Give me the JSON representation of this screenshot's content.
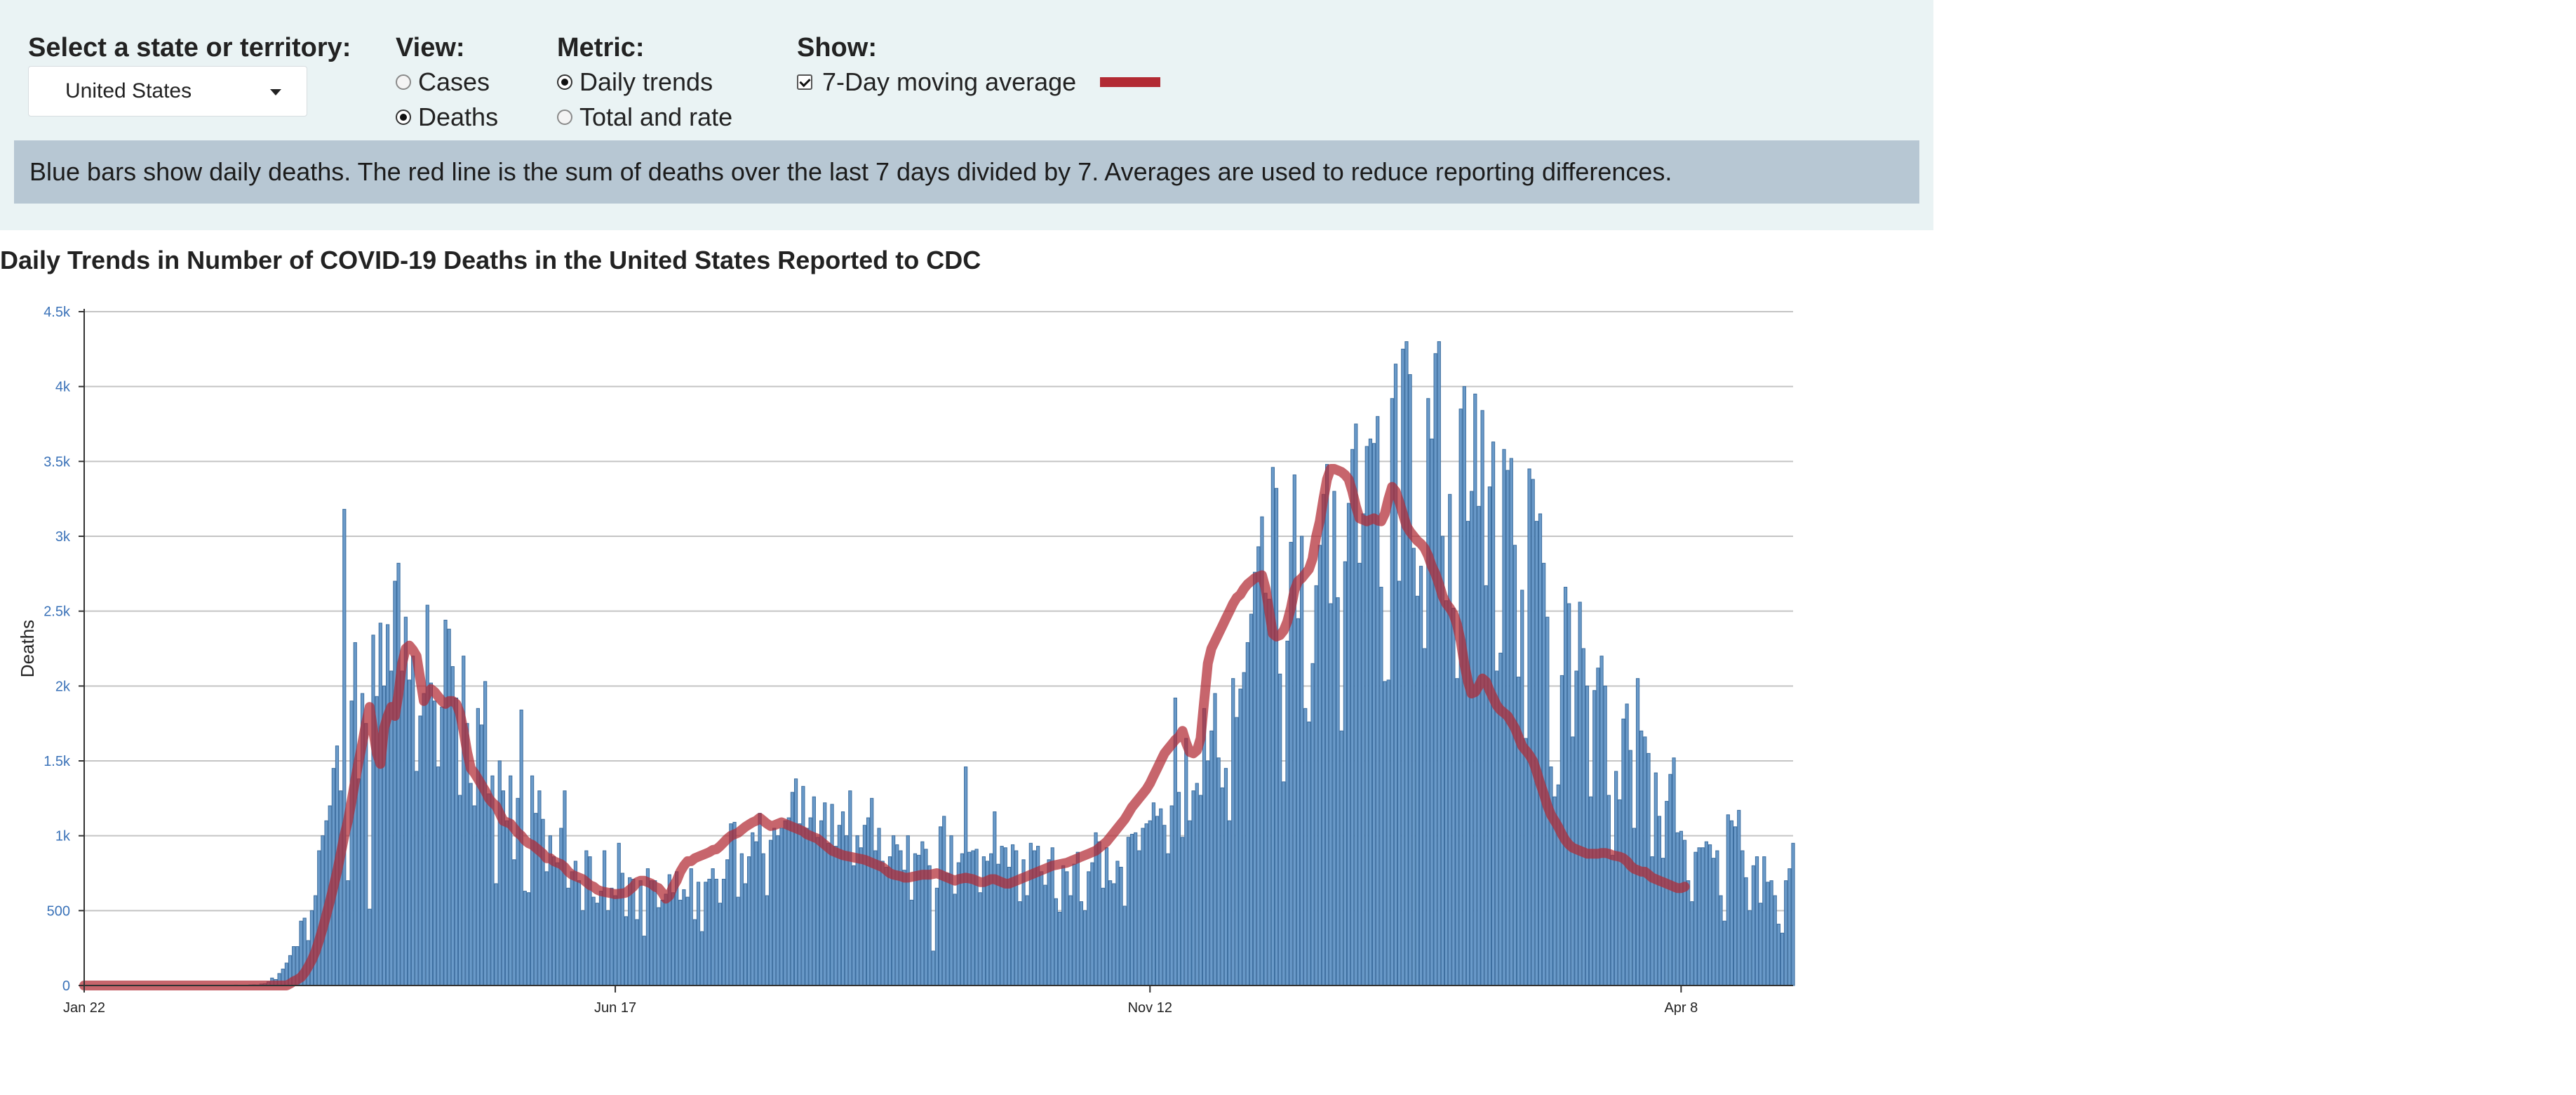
{
  "controls": {
    "state_label": "Select a state or territory:",
    "state_value": "United States",
    "view_label": "View:",
    "view_options": [
      "Cases",
      "Deaths"
    ],
    "metric_label": "Metric:",
    "metric_options": [
      "Daily trends",
      "Total and rate"
    ],
    "show_label": "Show:",
    "show_option": "7-Day moving average"
  },
  "banner": "Blue bars show daily deaths. The red line is the sum of deaths over the last 7 days divided by 7. Averages are used to reduce reporting differences.",
  "chart_title": "Daily Trends in Number of COVID-19 Deaths in the United States Reported to CDC",
  "colors": {
    "bar": "#6a9ac9",
    "bar_edge": "#3d6e9f",
    "line": "#b22a33",
    "grid": "#c4c4c4"
  },
  "chart_data": {
    "type": "bar",
    "title": "Daily Trends in Number of COVID-19 Deaths in the United States Reported to CDC",
    "xlabel": "",
    "ylabel": "Deaths",
    "ylim": [
      0,
      4500
    ],
    "yticks": [
      0,
      500,
      1000,
      1500,
      2000,
      2500,
      3000,
      3500,
      4000,
      4500
    ],
    "ytick_labels": [
      "0",
      "500",
      "1k",
      "1.5k",
      "2k",
      "2.5k",
      "3k",
      "3.5k",
      "4k",
      "4.5k"
    ],
    "xticks": [
      {
        "index": 0,
        "label": "Jan 22"
      },
      {
        "index": 147,
        "label": "Jun 17"
      },
      {
        "index": 295,
        "label": "Nov 12"
      },
      {
        "index": 442,
        "label": "Apr 8"
      }
    ],
    "x_start": "Jan 22",
    "x_end": "Apr 8",
    "series": [
      {
        "type": "bar",
        "values": [
          0,
          0,
          0,
          0,
          0,
          0,
          0,
          0,
          0,
          0,
          0,
          0,
          0,
          0,
          0,
          0,
          0,
          0,
          0,
          0,
          0,
          0,
          0,
          0,
          0,
          0,
          0,
          0,
          0,
          0,
          0,
          0,
          0,
          0,
          0,
          0,
          0,
          0,
          1,
          0,
          0,
          2,
          3,
          1,
          2,
          1,
          4,
          5,
          4,
          10,
          12,
          25,
          50,
          40,
          80,
          110,
          150,
          200,
          260,
          260,
          430,
          450,
          300,
          500,
          600,
          900,
          1000,
          1100,
          1200,
          1450,
          1600,
          1300,
          3180,
          700,
          1900,
          2290,
          1380,
          1950,
          1750,
          510,
          2340,
          1930,
          2420,
          2000,
          2410,
          2100,
          2700,
          2820,
          2100,
          2460,
          2040,
          2200,
          1430,
          1800,
          1950,
          2540,
          2020,
          1900,
          1460,
          1860,
          2440,
          2380,
          2130,
          1920,
          1270,
          2200,
          1750,
          1350,
          1200,
          1850,
          1740,
          2030,
          1280,
          1400,
          680,
          1500,
          1300,
          1100,
          1400,
          840,
          1250,
          1840,
          630,
          620,
          1400,
          1150,
          1300,
          1110,
          760,
          1000,
          860,
          820,
          1050,
          1300,
          650,
          760,
          830,
          700,
          500,
          900,
          860,
          590,
          550,
          630,
          900,
          500,
          650,
          600,
          950,
          750,
          460,
          720,
          710,
          440,
          700,
          330,
          780,
          700,
          700,
          520,
          570,
          610,
          740,
          620,
          760,
          570,
          640,
          590,
          780,
          440,
          690,
          360,
          690,
          710,
          780,
          710,
          550,
          710,
          840,
          1080,
          1090,
          590,
          880,
          680,
          860,
          1020,
          960,
          1150,
          880,
          600,
          970,
          1050,
          1000,
          1050,
          1100,
          1120,
          1290,
          1380,
          1080,
          1330,
          1050,
          1120,
          1260,
          990,
          1100,
          1220,
          950,
          1210,
          930,
          1070,
          1160,
          1000,
          1300,
          800,
          1000,
          920,
          1070,
          1120,
          1250,
          900,
          1050,
          830,
          790,
          860,
          1000,
          940,
          900,
          770,
          1000,
          570,
          880,
          870,
          960,
          910,
          800,
          230,
          650,
          1060,
          1130,
          750,
          1000,
          610,
          820,
          880,
          1460,
          890,
          900,
          910,
          620,
          860,
          830,
          880,
          1160,
          810,
          930,
          920,
          790,
          940,
          900,
          560,
          840,
          600,
          950,
          900,
          930,
          760,
          670,
          840,
          920,
          580,
          490,
          800,
          760,
          600,
          810,
          890,
          560,
          500,
          760,
          820,
          1020,
          960,
          650,
          920,
          700,
          680,
          830,
          790,
          530,
          990,
          1010,
          1020,
          900,
          1050,
          1080,
          1100,
          1220,
          1130,
          1180,
          1070,
          880,
          1200,
          1920,
          1290,
          990,
          1650,
          1100,
          1300,
          1350,
          1270,
          1850,
          1500,
          1700,
          1950,
          1520,
          1320,
          1450,
          1100,
          2050,
          1790,
          1980,
          2090,
          2290,
          2480,
          2760,
          2930,
          3130,
          2620,
          2580,
          3460,
          3320,
          2080,
          1360,
          2300,
          2960,
          3410,
          2450,
          3000,
          1850,
          1760,
          2150,
          2670,
          2940,
          3280,
          3480,
          2550,
          3300,
          2590,
          1700,
          2830,
          3220,
          3580,
          3750,
          2820,
          3150,
          3600,
          3650,
          3620,
          3800,
          2660,
          2030,
          2040,
          3920,
          4150,
          2700,
          4250,
          4300,
          4080,
          2920,
          2600,
          2800,
          2250,
          3920,
          3650,
          4220,
          4300,
          3000,
          2570,
          3280,
          2520,
          2050,
          3850,
          4000,
          3100,
          3300,
          3950,
          3200,
          3840,
          2670,
          3330,
          3630,
          2100,
          2220,
          3580,
          3440,
          3520,
          2940,
          2060,
          2640,
          1650,
          3450,
          3380,
          3100,
          3150,
          2820,
          2460,
          1460,
          1260,
          1340,
          2070,
          2660,
          2550,
          1660,
          2100,
          2560,
          2250,
          2000,
          1260,
          1970,
          2120,
          2200,
          2000,
          1270,
          870,
          1430,
          1240,
          1780,
          1880,
          1570,
          1050,
          2050,
          1700,
          1660,
          1550,
          860,
          1420,
          1130,
          850,
          1230,
          1410,
          1520,
          1020,
          1030,
          970,
          700,
          560,
          890,
          920,
          920,
          960,
          940,
          850,
          900,
          600,
          430,
          1140,
          1100,
          1060,
          1170,
          900,
          720,
          500,
          800,
          860,
          550,
          860,
          690,
          700,
          600,
          410,
          350,
          700,
          780,
          950
        ]
      },
      {
        "type": "line",
        "values": [
          0,
          0,
          0,
          0,
          0,
          0,
          0,
          0,
          0,
          0,
          0,
          0,
          0,
          0,
          0,
          0,
          0,
          0,
          0,
          0,
          0,
          0,
          0,
          0,
          0,
          0,
          0,
          0,
          0,
          0,
          0,
          0,
          0,
          0,
          0,
          0,
          0,
          0,
          0,
          0,
          0,
          0,
          0,
          0,
          0,
          0,
          0,
          0,
          0,
          0,
          0,
          0,
          0,
          0,
          0,
          0,
          0,
          12,
          28,
          40,
          55,
          85,
          125,
          170,
          225,
          300,
          380,
          470,
          560,
          660,
          760,
          880,
          1000,
          1100,
          1230,
          1370,
          1500,
          1620,
          1750,
          1860,
          1700,
          1550,
          1480,
          1720,
          1800,
          1860,
          1800,
          1950,
          2150,
          2250,
          2270,
          2240,
          2200,
          2050,
          1900,
          1950,
          1980,
          1960,
          1930,
          1900,
          1880,
          1900,
          1900,
          1880,
          1820,
          1700,
          1560,
          1450,
          1420,
          1380,
          1340,
          1300,
          1250,
          1220,
          1200,
          1150,
          1100,
          1090,
          1080,
          1050,
          1020,
          1000,
          970,
          950,
          940,
          920,
          900,
          880,
          850,
          850,
          830,
          820,
          810,
          790,
          760,
          740,
          730,
          720,
          710,
          690,
          670,
          660,
          640,
          630,
          625,
          620,
          615,
          610,
          612,
          615,
          620,
          640,
          660,
          690,
          700,
          700,
          690,
          680,
          660,
          650,
          620,
          580,
          600,
          660,
          700,
          760,
          800,
          830,
          830,
          850,
          860,
          870,
          880,
          890,
          905,
          910,
          930,
          955,
          980,
          1000,
          1010,
          1020,
          1040,
          1060,
          1075,
          1090,
          1100,
          1120,
          1100,
          1080,
          1065,
          1070,
          1080,
          1090,
          1080,
          1070,
          1060,
          1050,
          1040,
          1030,
          1010,
          1000,
          990,
          980,
          960,
          940,
          920,
          900,
          890,
          880,
          870,
          865,
          860,
          855,
          850,
          845,
          840,
          830,
          820,
          810,
          800,
          790,
          770,
          750,
          740,
          735,
          730,
          720,
          720,
          725,
          730,
          735,
          740,
          740,
          740,
          745,
          750,
          740,
          730,
          720,
          710,
          700,
          710,
          715,
          720,
          715,
          710,
          700,
          690,
          690,
          700,
          710,
          710,
          700,
          690,
          680,
          680,
          690,
          700,
          710,
          720,
          730,
          740,
          750,
          760,
          770,
          780,
          790,
          800,
          805,
          810,
          815,
          820,
          830,
          840,
          850,
          860,
          870,
          880,
          890,
          900,
          920,
          940,
          960,
          990,
          1020,
          1050,
          1080,
          1110,
          1150,
          1190,
          1220,
          1250,
          1280,
          1310,
          1350,
          1400,
          1450,
          1500,
          1550,
          1580,
          1610,
          1640,
          1660,
          1700,
          1620,
          1560,
          1550,
          1570,
          1650,
          1900,
          2150,
          2250,
          2300,
          2350,
          2400,
          2450,
          2500,
          2550,
          2590,
          2610,
          2650,
          2680,
          2700,
          2720,
          2730,
          2740,
          2650,
          2500,
          2350,
          2330,
          2340,
          2370,
          2430,
          2520,
          2640,
          2700,
          2720,
          2750,
          2780,
          2850,
          3000,
          3100,
          3250,
          3380,
          3450,
          3450,
          3440,
          3430,
          3410,
          3380,
          3300,
          3200,
          3120,
          3110,
          3100,
          3110,
          3120,
          3105,
          3100,
          3150,
          3250,
          3330,
          3300,
          3230,
          3150,
          3070,
          3030,
          3000,
          2970,
          2950,
          2920,
          2870,
          2800,
          2750,
          2680,
          2600,
          2550,
          2520,
          2480,
          2410,
          2300,
          2150,
          2030,
          1950,
          1960,
          2000,
          2050,
          2030,
          1970,
          1920,
          1870,
          1840,
          1820,
          1800,
          1760,
          1720,
          1660,
          1600,
          1570,
          1540,
          1500,
          1430,
          1350,
          1280,
          1200,
          1140,
          1100,
          1060,
          1010,
          970,
          940,
          920,
          910,
          900,
          890,
          880,
          880,
          880,
          880,
          885,
          885,
          880,
          870,
          865,
          860,
          850,
          830,
          800,
          780,
          770,
          760,
          760,
          740,
          720,
          710,
          700,
          690,
          680,
          670,
          660,
          650,
          650,
          660
        ]
      }
    ]
  }
}
